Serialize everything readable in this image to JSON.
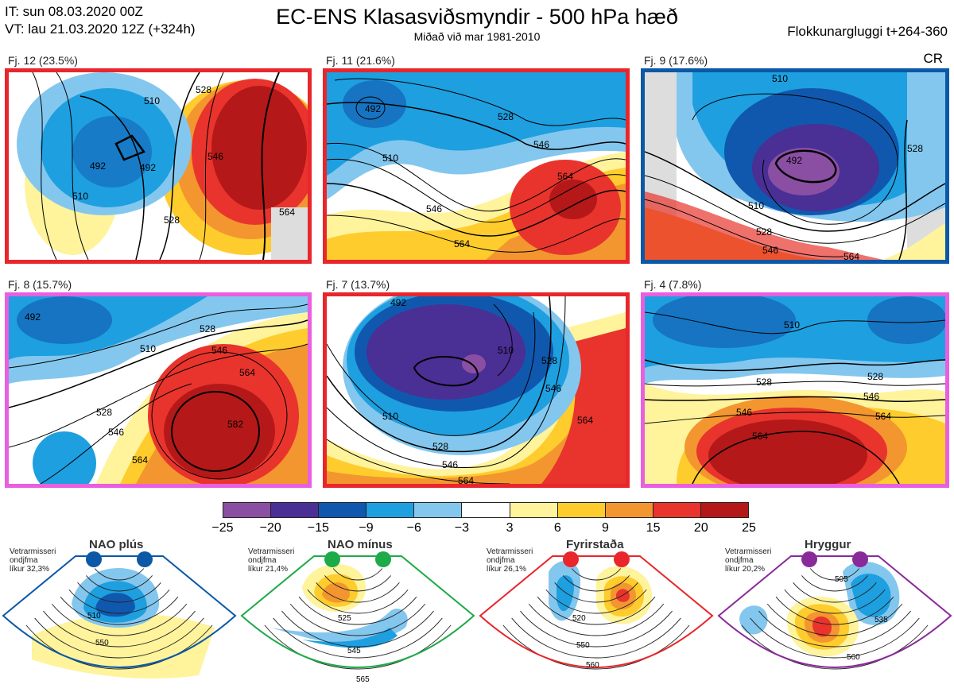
{
  "header": {
    "it": "IT: sun 08.03.2020 00Z",
    "vt": "VT: lau 21.03.2020 12Z  (+324h)",
    "title": "EC-ENS Klasasviðsmyndir - 500 hPa hæð",
    "subtitle": "Miðað við mar 1981-2010",
    "right": "Flokkunargluggi t+264-360",
    "cr": "CR"
  },
  "panels": [
    {
      "label": "Fj. 12 (23.5%)",
      "border": "#e8262b",
      "contours": [
        "528",
        "510",
        "492",
        "492",
        "510",
        "546",
        "564",
        "528"
      ]
    },
    {
      "label": "Fj. 11 (21.6%)",
      "border": "#e8262b",
      "contours": [
        "492",
        "510",
        "528",
        "546",
        "564",
        "546",
        "564"
      ]
    },
    {
      "label": "Fj. 9 (17.6%)",
      "border": "#0a58a6",
      "contours": [
        "510",
        "492",
        "510",
        "528",
        "546",
        "564",
        "528"
      ]
    },
    {
      "label": "Fj. 8 (15.7%)",
      "border": "#e95fe0",
      "contours": [
        "510",
        "528",
        "546",
        "564",
        "582",
        "528",
        "546",
        "564"
      ]
    },
    {
      "label": "Fj. 7 (13.7%)",
      "border": "#e8262b",
      "contours": [
        "492",
        "510",
        "528",
        "546",
        "564",
        "510",
        "528",
        "546",
        "564"
      ]
    },
    {
      "label": "Fj. 4 (7.8%)",
      "border": "#e95fe0",
      "contours": [
        "510",
        "528",
        "546",
        "564",
        "528",
        "546",
        "564"
      ]
    }
  ],
  "colorbar": {
    "colors": [
      "#8a4fa3",
      "#4a2f95",
      "#1058ae",
      "#1e9fe0",
      "#83c7ee",
      "#ffffff",
      "#fff39c",
      "#fecc2c",
      "#f39630",
      "#e8342c",
      "#b51818"
    ],
    "ticks": [
      "−25",
      "−20",
      "−15",
      "−9",
      "−6",
      "−3",
      "3",
      "6",
      "9",
      "15",
      "20",
      "25"
    ]
  },
  "regimes": [
    {
      "name": "NAO plús",
      "note1": "Vetrarmisseri",
      "note2": "ondjfma",
      "note3": "líkur 32,3%",
      "color": "#0a58a6",
      "contours": [
        "510",
        "550"
      ]
    },
    {
      "name": "NAO mínus",
      "note1": "Vetrarmisseri",
      "note2": "ondjfma",
      "note3": "líkur 21,4%",
      "color": "#1daa48",
      "contours": [
        "525",
        "545",
        "565"
      ]
    },
    {
      "name": "Fyrirstaða",
      "note1": "Vetrarmisseri",
      "note2": "ondjfma",
      "note3": "líkur 26,1%",
      "color": "#e8262b",
      "contours": [
        "520",
        "550",
        "560"
      ]
    },
    {
      "name": "Hryggur",
      "note1": "Vetrarmisseri",
      "note2": "ondjfma",
      "note3": "líkur 20,2%",
      "color": "#8a2a9a",
      "contours": [
        "505",
        "535",
        "560"
      ]
    }
  ]
}
